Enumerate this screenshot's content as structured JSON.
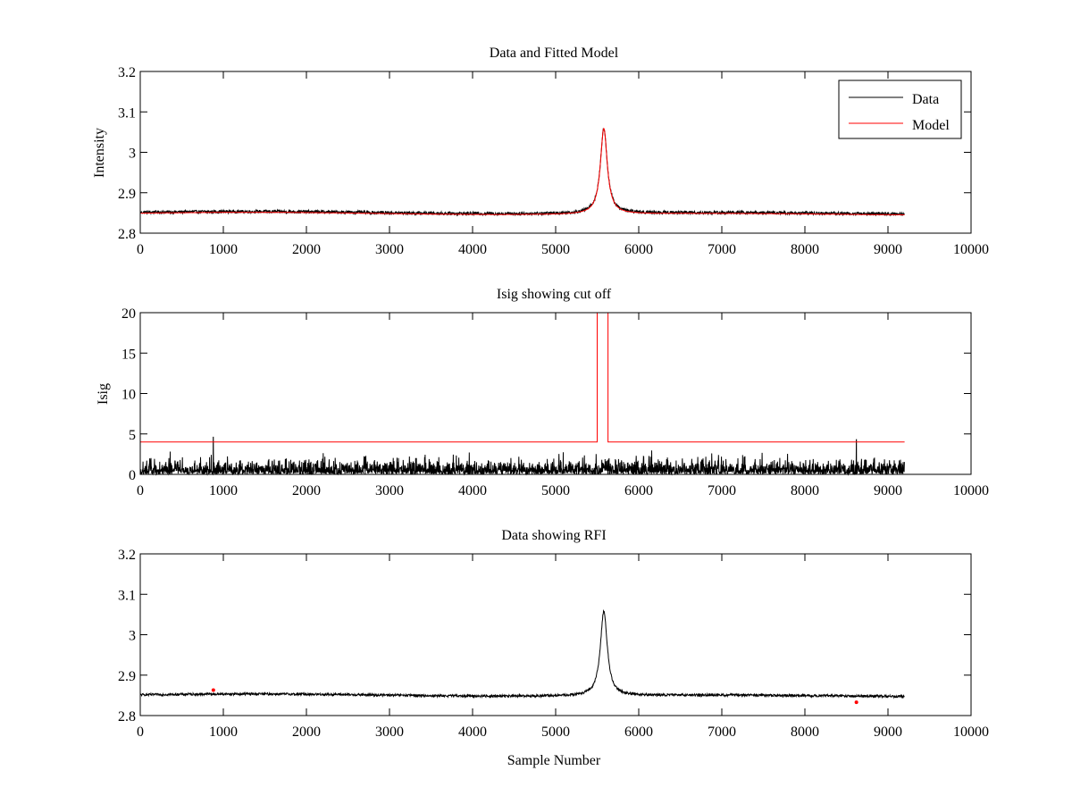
{
  "colors": {
    "data": "#000000",
    "model": "#ff0000",
    "cutoff": "#ff0000",
    "rfi": "#ff0000"
  },
  "chart_data": [
    {
      "type": "line",
      "title": "Data and Fitted Model",
      "xlabel": "",
      "ylabel": "Intensity",
      "xlim": [
        0,
        10000
      ],
      "ylim": [
        2.8,
        3.2
      ],
      "xticks": [
        0,
        1000,
        2000,
        3000,
        4000,
        5000,
        6000,
        7000,
        8000,
        9000,
        10000
      ],
      "xtick_labels": [
        "0",
        "1000",
        "2000",
        "3000",
        "4000",
        "5000",
        "6000",
        "7000",
        "8000",
        "9000",
        "10000"
      ],
      "yticks": [
        2.8,
        2.9,
        3.0,
        3.1,
        3.2
      ],
      "ytick_labels": [
        "2.8",
        "2.9",
        "3",
        "3.1",
        "3.2"
      ],
      "legend": {
        "position": "top-right",
        "entries": [
          "Data",
          "Model"
        ]
      },
      "series": [
        {
          "name": "Data",
          "color": "#000000",
          "x_range": [
            0,
            9200
          ],
          "baseline": 2.85,
          "noise": 0.004,
          "peak": {
            "x": 5580,
            "y": 3.06,
            "width": 50
          }
        },
        {
          "name": "Model",
          "color": "#ff0000",
          "x_range": [
            0,
            9200
          ],
          "baseline": 2.848,
          "noise": 0.0,
          "peak": {
            "x": 5580,
            "y": 3.06,
            "width": 50
          }
        }
      ]
    },
    {
      "type": "line",
      "title": "Isig showing cut off",
      "xlabel": "",
      "ylabel": "Isig",
      "xlim": [
        0,
        10000
      ],
      "ylim": [
        0,
        20
      ],
      "xticks": [
        0,
        1000,
        2000,
        3000,
        4000,
        5000,
        6000,
        7000,
        8000,
        9000,
        10000
      ],
      "xtick_labels": [
        "0",
        "1000",
        "2000",
        "3000",
        "4000",
        "5000",
        "6000",
        "7000",
        "8000",
        "9000",
        "10000"
      ],
      "yticks": [
        0,
        5,
        10,
        15,
        20
      ],
      "ytick_labels": [
        "0",
        "5",
        "10",
        "15",
        "20"
      ],
      "series": [
        {
          "color": "#000000",
          "x_range": [
            0,
            9200
          ],
          "max": 3.5,
          "spikes": [
            [
              880,
              4.6
            ],
            [
              8620,
              4.3
            ]
          ]
        },
        {
          "color": "#ff0000",
          "x": [
            0,
            5500,
            5500,
            5630,
            5630,
            9200
          ],
          "y": [
            4,
            4,
            20,
            20,
            4,
            4
          ]
        }
      ]
    },
    {
      "type": "line",
      "title": "Data showing RFI",
      "xlabel": "Sample Number",
      "ylabel": "",
      "xlim": [
        0,
        10000
      ],
      "ylim": [
        2.8,
        3.2
      ],
      "xticks": [
        0,
        1000,
        2000,
        3000,
        4000,
        5000,
        6000,
        7000,
        8000,
        9000,
        10000
      ],
      "xtick_labels": [
        "0",
        "1000",
        "2000",
        "3000",
        "4000",
        "5000",
        "6000",
        "7000",
        "8000",
        "9000",
        "10000"
      ],
      "yticks": [
        2.8,
        2.9,
        3.0,
        3.1,
        3.2
      ],
      "ytick_labels": [
        "2.8",
        "2.9",
        "3",
        "3.1",
        "3.2"
      ],
      "series": [
        {
          "color": "#000000",
          "x_range": [
            0,
            9200
          ],
          "baseline": 2.85,
          "noise": 0.003,
          "peak": {
            "x": 5580,
            "y": 3.06,
            "width": 50
          }
        }
      ],
      "rfi_points": [
        {
          "x": 880,
          "y": 2.863
        },
        {
          "x": 8620,
          "y": 2.833
        }
      ]
    }
  ]
}
